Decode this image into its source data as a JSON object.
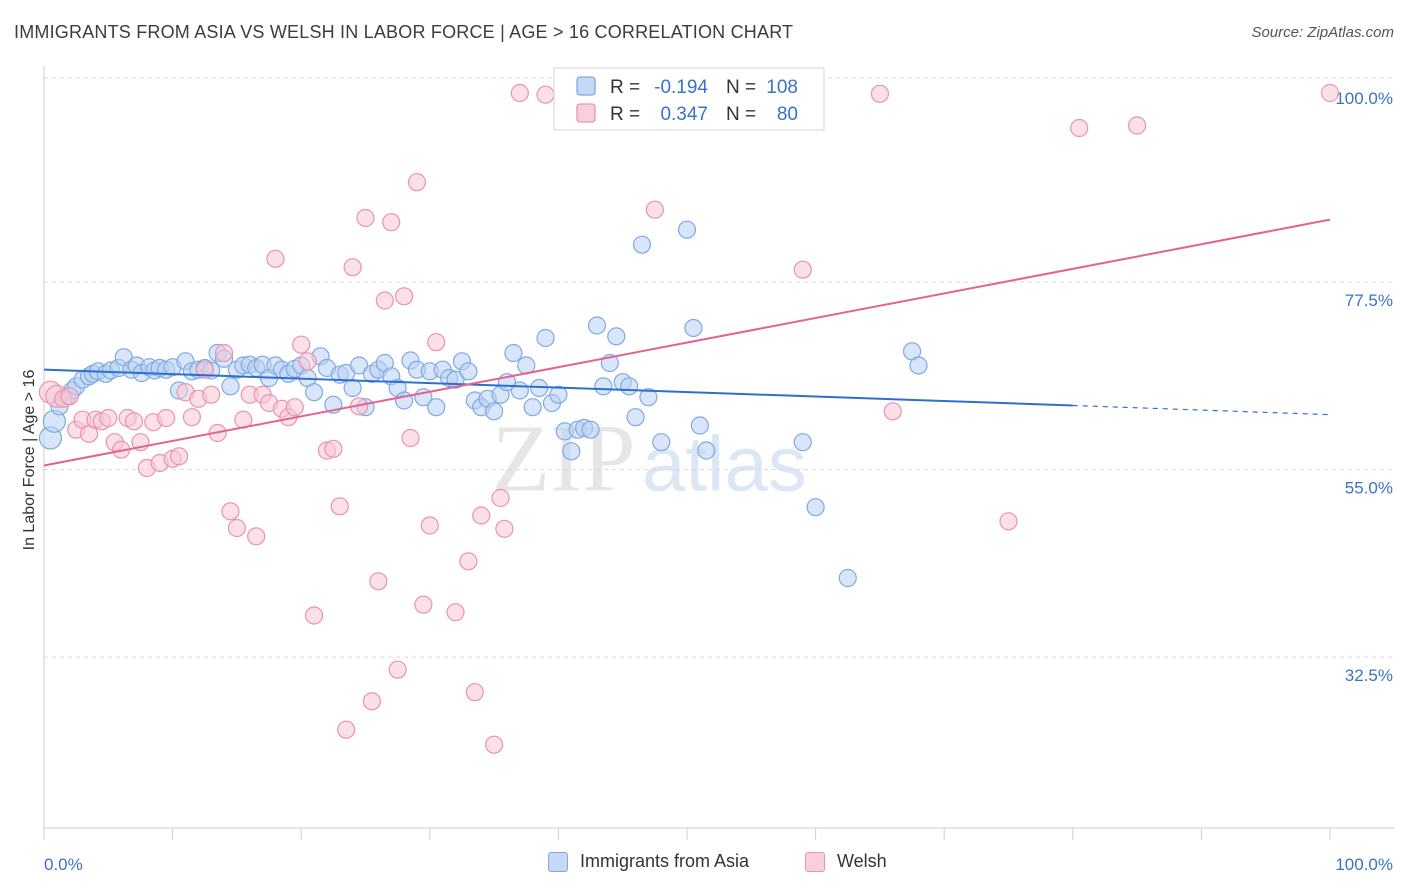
{
  "header": {
    "title": "IMMIGRANTS FROM ASIA VS WELSH IN LABOR FORCE | AGE > 16 CORRELATION CHART",
    "source": "Source: ZipAtlas.com"
  },
  "colors": {
    "blue": "#6fa0e0",
    "blue_line": "#2d6fd0",
    "blue_fill": "#b9d2f4",
    "pink": "#e98aab",
    "pink_line": "#e2648e",
    "pink_fill": "#f7c6d6",
    "accent_text": "#3a72c8",
    "grid": "#d9d9d9"
  },
  "chart_data": {
    "type": "scatter",
    "title": "IMMIGRANTS FROM ASIA VS WELSH IN LABOR FORCE | AGE > 16 CORRELATION CHART",
    "xlabel": "",
    "ylabel": "In Labor Force | Age > 16",
    "xlim": [
      0,
      100
    ],
    "ylim": [
      12,
      102
    ],
    "x_tick_labels": [
      "0.0%",
      "100.0%"
    ],
    "y_ticks": [
      32.5,
      55.0,
      77.5,
      100.0
    ],
    "y_tick_labels": [
      "32.5%",
      "55.0%",
      "77.5%",
      "100.0%"
    ],
    "grid": true,
    "legend_position": "top-center",
    "stats": [
      {
        "r_label": "R =",
        "r_value": "-0.194",
        "n_label": "N =",
        "n_value": "108"
      },
      {
        "r_label": "R =",
        "r_value": "0.347",
        "n_label": "N =",
        "n_value": "80"
      }
    ],
    "series": [
      {
        "name": "Immigrants from Asia",
        "color": "#6fa0e0",
        "trend": {
          "x0": 0,
          "y0": 67.0,
          "x1": 80,
          "y1": 62.7,
          "dash_to_x": 100,
          "dash_to_y": 61.6
        },
        "points": [
          [
            0.5,
            58.8
          ],
          [
            0.8,
            60.8
          ],
          [
            1.2,
            62.6
          ],
          [
            1.8,
            63.8
          ],
          [
            2.2,
            64.5
          ],
          [
            2.5,
            65.0
          ],
          [
            3.0,
            65.8
          ],
          [
            3.5,
            66.2
          ],
          [
            3.8,
            66.5
          ],
          [
            4.2,
            66.8
          ],
          [
            4.8,
            66.5
          ],
          [
            5.2,
            66.9
          ],
          [
            5.8,
            67.2
          ],
          [
            6.2,
            68.5
          ],
          [
            6.8,
            67.0
          ],
          [
            7.2,
            67.5
          ],
          [
            7.6,
            66.6
          ],
          [
            8.2,
            67.3
          ],
          [
            8.6,
            66.9
          ],
          [
            9.0,
            67.2
          ],
          [
            9.5,
            67.0
          ],
          [
            10.0,
            67.3
          ],
          [
            10.5,
            64.5
          ],
          [
            11.0,
            68.0
          ],
          [
            11.5,
            66.8
          ],
          [
            12.0,
            67.0
          ],
          [
            12.5,
            67.2
          ],
          [
            13.0,
            66.9
          ],
          [
            13.5,
            69.0
          ],
          [
            14.0,
            68.3
          ],
          [
            14.5,
            65.0
          ],
          [
            15.0,
            67.0
          ],
          [
            15.5,
            67.5
          ],
          [
            16.0,
            67.6
          ],
          [
            16.5,
            67.2
          ],
          [
            17.0,
            67.6
          ],
          [
            17.5,
            66.0
          ],
          [
            18.0,
            67.5
          ],
          [
            18.5,
            67.0
          ],
          [
            19.0,
            66.5
          ],
          [
            19.5,
            67.1
          ],
          [
            20.0,
            67.5
          ],
          [
            20.5,
            66.0
          ],
          [
            21.0,
            64.3
          ],
          [
            21.5,
            68.6
          ],
          [
            22.0,
            67.2
          ],
          [
            22.5,
            62.8
          ],
          [
            23.0,
            66.4
          ],
          [
            23.5,
            66.6
          ],
          [
            24.0,
            64.8
          ],
          [
            24.5,
            67.5
          ],
          [
            25.0,
            62.5
          ],
          [
            25.5,
            66.5
          ],
          [
            26.0,
            67.0
          ],
          [
            26.5,
            67.8
          ],
          [
            27.0,
            66.2
          ],
          [
            27.5,
            64.8
          ],
          [
            28.0,
            63.3
          ],
          [
            28.5,
            68.1
          ],
          [
            29.0,
            67.0
          ],
          [
            29.5,
            63.7
          ],
          [
            30.0,
            66.8
          ],
          [
            30.5,
            62.5
          ],
          [
            31.0,
            67.0
          ],
          [
            31.5,
            66.0
          ],
          [
            32.0,
            65.8
          ],
          [
            32.5,
            68.0
          ],
          [
            33.0,
            66.8
          ],
          [
            33.5,
            63.3
          ],
          [
            34.0,
            62.5
          ],
          [
            34.5,
            63.5
          ],
          [
            35.0,
            62.0
          ],
          [
            35.5,
            64.0
          ],
          [
            36.0,
            65.5
          ],
          [
            36.5,
            69.0
          ],
          [
            37.0,
            64.5
          ],
          [
            37.5,
            67.5
          ],
          [
            38.0,
            62.5
          ],
          [
            38.5,
            64.8
          ],
          [
            39.0,
            70.8
          ],
          [
            39.5,
            63.0
          ],
          [
            40.0,
            64.0
          ],
          [
            40.5,
            59.6
          ],
          [
            41.0,
            57.2
          ],
          [
            41.5,
            59.8
          ],
          [
            42.0,
            60.0
          ],
          [
            42.5,
            59.8
          ],
          [
            43.0,
            72.3
          ],
          [
            43.5,
            65.0
          ],
          [
            44.0,
            67.8
          ],
          [
            44.5,
            71.0
          ],
          [
            45.0,
            65.5
          ],
          [
            45.5,
            65.0
          ],
          [
            46.0,
            61.3
          ],
          [
            46.5,
            82.0
          ],
          [
            47.0,
            63.7
          ],
          [
            48.0,
            58.3
          ],
          [
            50.0,
            83.8
          ],
          [
            50.5,
            72.0
          ],
          [
            51.0,
            60.3
          ],
          [
            51.5,
            57.3
          ],
          [
            59.0,
            58.3
          ],
          [
            60.0,
            50.5
          ],
          [
            62.5,
            42.0
          ],
          [
            67.5,
            69.2
          ],
          [
            68.0,
            67.5
          ]
        ]
      },
      {
        "name": "Welsh",
        "color": "#e98aab",
        "trend": {
          "x0": 0,
          "y0": 55.5,
          "x1": 100,
          "y1": 85.0
        },
        "points": [
          [
            0.5,
            64.3
          ],
          [
            1.0,
            63.8
          ],
          [
            1.5,
            63.5
          ],
          [
            2.0,
            63.8
          ],
          [
            2.5,
            59.8
          ],
          [
            3.0,
            61.0
          ],
          [
            3.5,
            59.3
          ],
          [
            4.0,
            61.0
          ],
          [
            4.5,
            60.8
          ],
          [
            5.0,
            61.2
          ],
          [
            5.5,
            58.3
          ],
          [
            6.0,
            57.4
          ],
          [
            6.5,
            61.2
          ],
          [
            7.0,
            60.8
          ],
          [
            7.5,
            58.3
          ],
          [
            8.0,
            55.2
          ],
          [
            8.5,
            60.7
          ],
          [
            9.0,
            55.8
          ],
          [
            9.5,
            61.2
          ],
          [
            10.0,
            56.3
          ],
          [
            10.5,
            56.6
          ],
          [
            11.0,
            64.3
          ],
          [
            11.5,
            61.3
          ],
          [
            12.0,
            63.5
          ],
          [
            12.5,
            67.0
          ],
          [
            13.0,
            64.0
          ],
          [
            13.5,
            59.4
          ],
          [
            14.0,
            69.0
          ],
          [
            14.5,
            50.0
          ],
          [
            15.0,
            48.0
          ],
          [
            15.5,
            61.0
          ],
          [
            16.0,
            64.0
          ],
          [
            16.5,
            47.0
          ],
          [
            17.0,
            64.0
          ],
          [
            17.5,
            63.0
          ],
          [
            18.0,
            80.3
          ],
          [
            18.5,
            62.3
          ],
          [
            19.0,
            61.3
          ],
          [
            19.5,
            62.5
          ],
          [
            20.0,
            70.0
          ],
          [
            20.5,
            68.0
          ],
          [
            21.0,
            37.5
          ],
          [
            22.0,
            57.3
          ],
          [
            22.5,
            57.5
          ],
          [
            23.0,
            50.6
          ],
          [
            23.5,
            23.8
          ],
          [
            24.0,
            79.3
          ],
          [
            24.5,
            62.6
          ],
          [
            25.0,
            85.2
          ],
          [
            25.5,
            27.2
          ],
          [
            26.0,
            41.6
          ],
          [
            26.5,
            75.3
          ],
          [
            27.0,
            84.7
          ],
          [
            27.5,
            31.0
          ],
          [
            28.0,
            75.8
          ],
          [
            28.5,
            58.8
          ],
          [
            29.0,
            89.5
          ],
          [
            29.5,
            38.8
          ],
          [
            30.0,
            48.3
          ],
          [
            30.5,
            70.3
          ],
          [
            32.0,
            37.9
          ],
          [
            33.0,
            44.0
          ],
          [
            33.5,
            28.3
          ],
          [
            34.0,
            49.5
          ],
          [
            35.0,
            22.0
          ],
          [
            35.5,
            51.6
          ],
          [
            35.8,
            47.9
          ],
          [
            37.0,
            100.2
          ],
          [
            39.0,
            100.0
          ],
          [
            42.0,
            100.0
          ],
          [
            47.5,
            86.2
          ],
          [
            59.0,
            79.0
          ],
          [
            65.0,
            100.1
          ],
          [
            66.0,
            62.0
          ],
          [
            75.0,
            48.8
          ],
          [
            80.5,
            96.0
          ],
          [
            85.0,
            96.3
          ],
          [
            100.0,
            100.2
          ]
        ]
      }
    ]
  },
  "legend": {
    "items": [
      {
        "label": "Immigrants from Asia"
      },
      {
        "label": "Welsh"
      }
    ]
  },
  "watermark": "ZIPatlas"
}
